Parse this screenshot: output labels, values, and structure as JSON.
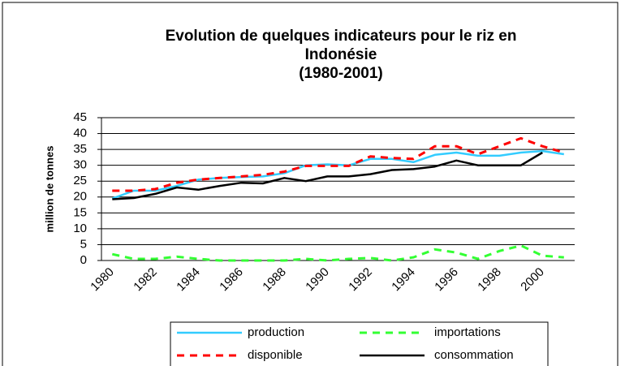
{
  "chart_data": {
    "type": "line",
    "title": [
      "Evolution de quelques indicateurs pour le riz en",
      "Indonésie",
      "(1980-2001)"
    ],
    "y_label": "million de tonnes",
    "categories": [
      "1980",
      null,
      "1982",
      null,
      "1984",
      null,
      "1986",
      null,
      "1988",
      null,
      "1990",
      null,
      "1992",
      null,
      "1994",
      null,
      "1996",
      null,
      "1998",
      null,
      "2000",
      null
    ],
    "series": [
      {
        "name": "production",
        "color": "#33ccff",
        "dashed": false,
        "values": [
          19.5,
          22,
          22,
          23.5,
          25.5,
          26,
          26.3,
          26.5,
          27.5,
          30,
          30.3,
          30,
          32,
          32,
          31,
          33.3,
          34,
          33,
          33,
          34,
          34.5,
          33.5
        ]
      },
      {
        "name": "importations",
        "color": "#33ff33",
        "dashed": true,
        "values": [
          2,
          0.5,
          0.5,
          1.2,
          0.5,
          0,
          0,
          0,
          0,
          0.5,
          0,
          0.5,
          0.8,
          0,
          1,
          3.5,
          2.5,
          0.5,
          3,
          4.7,
          1.5,
          1
        ]
      },
      {
        "name": "disponible",
        "color": "#ff0000",
        "dashed": true,
        "values": [
          22,
          22,
          22.5,
          24.5,
          25.5,
          26,
          26.5,
          27,
          28,
          29.8,
          29.8,
          29.8,
          32.8,
          32.3,
          32,
          36,
          36,
          33.5,
          36,
          38.5,
          36,
          34
        ]
      },
      {
        "name": "consommation",
        "color": "#000000",
        "dashed": false,
        "values": [
          19.3,
          19.7,
          21,
          23,
          22.3,
          23.5,
          24.5,
          24.3,
          26,
          25,
          26.5,
          26.5,
          27.2,
          28.5,
          28.8,
          29.6,
          31.5,
          30,
          30,
          30,
          34,
          null
        ]
      }
    ],
    "ylim": [
      0,
      45
    ],
    "yticks": [
      0,
      5,
      10,
      15,
      20,
      25,
      30,
      35,
      40,
      45
    ],
    "grid": true
  }
}
